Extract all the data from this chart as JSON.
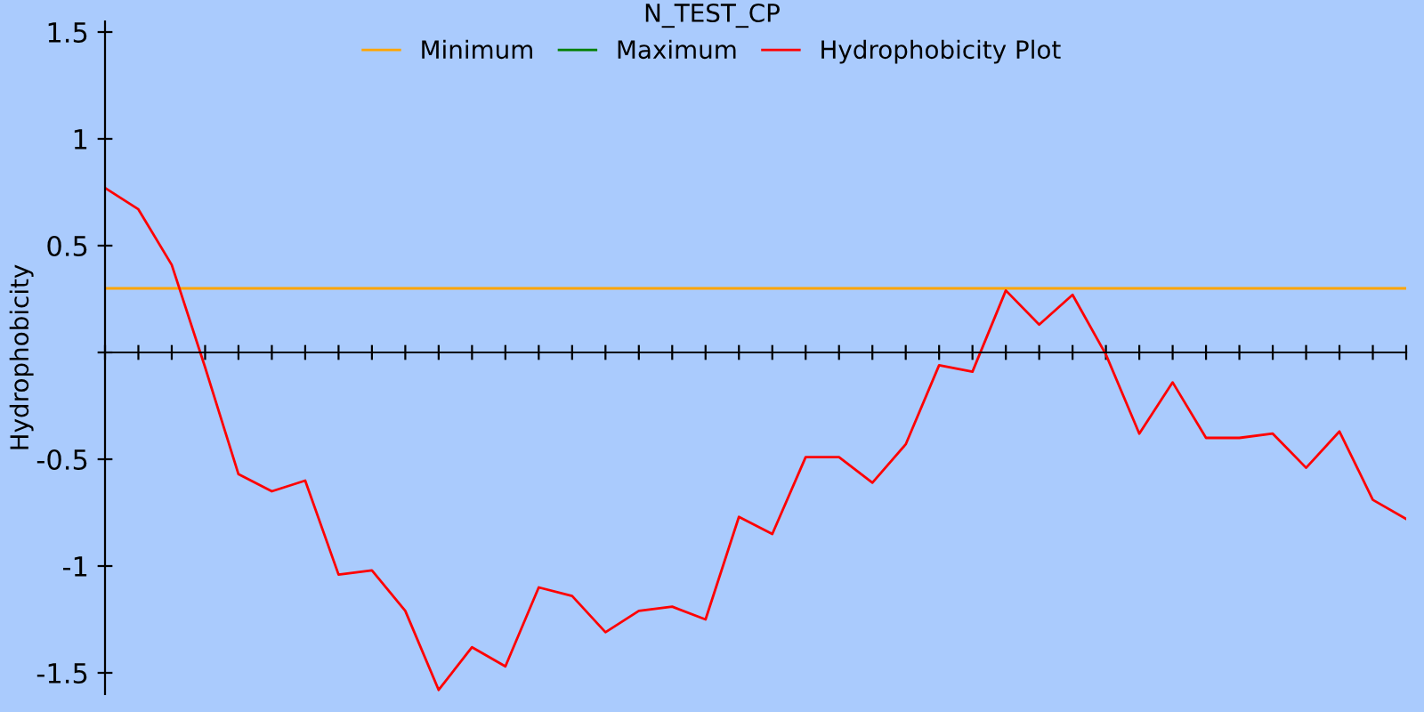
{
  "chart_data": {
    "type": "line",
    "title": "N_TEST_CP",
    "ylabel": "Hydrophobicity",
    "categories": [
      null,
      null,
      null,
      null,
      null,
      null,
      null,
      null,
      null,
      null,
      null,
      null,
      null,
      null,
      null,
      null,
      null,
      null,
      null,
      null,
      null,
      null,
      null,
      null,
      null,
      null,
      null,
      null,
      null,
      null,
      null,
      null,
      null,
      null,
      null,
      null,
      null,
      null,
      null,
      null
    ],
    "series": [
      {
        "name": "Minimum",
        "color": "#ffa500",
        "values": [
          0.3,
          0.3,
          0.3,
          0.3,
          0.3,
          0.3,
          0.3,
          0.3,
          0.3,
          0.3,
          0.3,
          0.3,
          0.3,
          0.3,
          0.3,
          0.3,
          0.3,
          0.3,
          0.3,
          0.3,
          0.3,
          0.3,
          0.3,
          0.3,
          0.3,
          0.3,
          0.3,
          0.3,
          0.3,
          0.3,
          0.3,
          0.3,
          0.3,
          0.3,
          0.3,
          0.3,
          0.3,
          0.3,
          0.3,
          0.3
        ]
      },
      {
        "name": "Maximum",
        "color": "#008000",
        "values": [
          null,
          null,
          null,
          null,
          null,
          null,
          null,
          null,
          null,
          null,
          null,
          null,
          null,
          null,
          null,
          null,
          null,
          null,
          null,
          null,
          null,
          null,
          null,
          null,
          null,
          null,
          null,
          null,
          null,
          null,
          null,
          null,
          null,
          null,
          null,
          null,
          null,
          null,
          null,
          null
        ]
      },
      {
        "name": "Hydrophobicity Plot",
        "color": "#ff0000",
        "values": [
          0.77,
          0.67,
          0.41,
          -0.07,
          -0.57,
          -0.65,
          -0.6,
          -1.04,
          -1.02,
          -1.21,
          -1.58,
          -1.38,
          -1.47,
          -1.1,
          -1.14,
          -1.31,
          -1.21,
          -1.19,
          -1.25,
          -0.77,
          -0.85,
          -0.49,
          -0.49,
          -0.61,
          -0.43,
          -0.06,
          -0.09,
          0.29,
          0.13,
          0.27,
          -0.01,
          -0.38,
          -0.14,
          -0.4,
          -0.4,
          -0.38,
          -0.54,
          -0.37,
          -0.69,
          -0.78
        ]
      }
    ],
    "ylim": [
      -1.6,
      1.55
    ],
    "yticks": [
      1.5,
      1,
      0.5,
      {
        "value": 0,
        "label": null
      },
      -0.5,
      -1,
      -1.5
    ],
    "tick_labels": "y",
    "legend": "top"
  }
}
